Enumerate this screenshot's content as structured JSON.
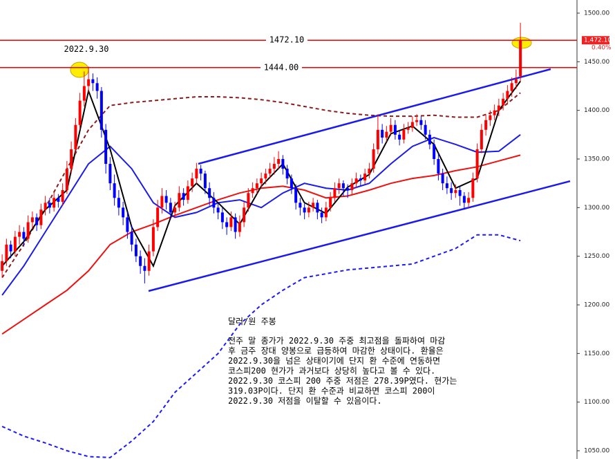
{
  "chart_data": {
    "type": "candlestick",
    "title": "달러/원 주봉",
    "notes": [
      "전주 말 종가가 2022.9.30 주중 최고점을 돌파하여 마감",
      "후 금주 장대 양봉으로 급등하여 마감한 상태이다. 환율은",
      "2022.9.30을 넘은 상태이기에 단지 환 수준에 연동하면",
      "코스피200 현가가 과거보다 상당히 높다고 볼 수 있다.",
      "2022.9.30 코스피 200 주중 저점은 278.39P였다. 현가는",
      "319.03P이다. 단지 환 수준과 비교하면 코스피 200이",
      "2022.9.30 저점을 이탈할 수 있음이다."
    ],
    "annotation": "2022.9.30",
    "xlim": [
      -0.5,
      132.3
    ],
    "ylim": [
      1041.5,
      1513.5
    ],
    "yticks": [
      {
        "value": 1050,
        "label": "1050.00"
      },
      {
        "value": 1100,
        "label": "1100.00"
      },
      {
        "value": 1150,
        "label": "1150.00"
      },
      {
        "value": 1200,
        "label": "1200.00"
      },
      {
        "value": 1250,
        "label": "1250.00"
      },
      {
        "value": 1300,
        "label": "1300.00"
      },
      {
        "value": 1350,
        "label": "1350.00"
      },
      {
        "value": 1400,
        "label": "1400.00"
      },
      {
        "value": 1450,
        "label": "1450.00"
      },
      {
        "value": 1500,
        "label": "1500.00"
      }
    ],
    "up_color": "#ff0000",
    "down_color": "#0000ff",
    "ohlc": [
      [
        1235,
        1252,
        1228,
        1245
      ],
      [
        1245,
        1268,
        1240,
        1262
      ],
      [
        1262,
        1266,
        1248,
        1255
      ],
      [
        1255,
        1276,
        1250,
        1270
      ],
      [
        1270,
        1282,
        1262,
        1275
      ],
      [
        1275,
        1280,
        1260,
        1268
      ],
      [
        1268,
        1292,
        1264,
        1285
      ],
      [
        1285,
        1296,
        1278,
        1290
      ],
      [
        1290,
        1294,
        1276,
        1282
      ],
      [
        1282,
        1304,
        1278,
        1298
      ],
      [
        1298,
        1312,
        1292,
        1305
      ],
      [
        1305,
        1310,
        1294,
        1300
      ],
      [
        1300,
        1316,
        1296,
        1310
      ],
      [
        1310,
        1314,
        1300,
        1306
      ],
      [
        1306,
        1325,
        1302,
        1318
      ],
      [
        1318,
        1348,
        1314,
        1340
      ],
      [
        1340,
        1368,
        1335,
        1360
      ],
      [
        1360,
        1392,
        1355,
        1385
      ],
      [
        1385,
        1418,
        1380,
        1410
      ],
      [
        1410,
        1440,
        1404,
        1425
      ],
      [
        1425,
        1445,
        1418,
        1432
      ],
      [
        1432,
        1438,
        1420,
        1428
      ],
      [
        1428,
        1434,
        1412,
        1420
      ],
      [
        1420,
        1424,
        1372,
        1380
      ],
      [
        1380,
        1386,
        1335,
        1345
      ],
      [
        1345,
        1352,
        1318,
        1325
      ],
      [
        1325,
        1334,
        1302,
        1310
      ],
      [
        1310,
        1318,
        1292,
        1300
      ],
      [
        1300,
        1306,
        1282,
        1290
      ],
      [
        1290,
        1296,
        1268,
        1275
      ],
      [
        1275,
        1282,
        1255,
        1262
      ],
      [
        1262,
        1268,
        1244,
        1250
      ],
      [
        1250,
        1256,
        1232,
        1240
      ],
      [
        1240,
        1248,
        1222,
        1235
      ],
      [
        1235,
        1262,
        1230,
        1255
      ],
      [
        1255,
        1288,
        1250,
        1280
      ],
      [
        1280,
        1308,
        1276,
        1300
      ],
      [
        1300,
        1320,
        1294,
        1312
      ],
      [
        1312,
        1318,
        1298,
        1305
      ],
      [
        1305,
        1310,
        1288,
        1295
      ],
      [
        1295,
        1306,
        1290,
        1300
      ],
      [
        1300,
        1322,
        1296,
        1315
      ],
      [
        1315,
        1320,
        1302,
        1308
      ],
      [
        1308,
        1328,
        1304,
        1322
      ],
      [
        1322,
        1336,
        1316,
        1330
      ],
      [
        1330,
        1346,
        1324,
        1340
      ],
      [
        1340,
        1344,
        1328,
        1335
      ],
      [
        1335,
        1338,
        1314,
        1320
      ],
      [
        1320,
        1326,
        1302,
        1310
      ],
      [
        1310,
        1316,
        1294,
        1300
      ],
      [
        1300,
        1305,
        1288,
        1295
      ],
      [
        1295,
        1300,
        1278,
        1285
      ],
      [
        1285,
        1290,
        1272,
        1280
      ],
      [
        1280,
        1296,
        1276,
        1290
      ],
      [
        1290,
        1294,
        1268,
        1275
      ],
      [
        1275,
        1292,
        1270,
        1285
      ],
      [
        1285,
        1306,
        1280,
        1300
      ],
      [
        1300,
        1320,
        1296,
        1315
      ],
      [
        1315,
        1326,
        1310,
        1320
      ],
      [
        1320,
        1330,
        1314,
        1325
      ],
      [
        1325,
        1336,
        1320,
        1330
      ],
      [
        1330,
        1340,
        1324,
        1335
      ],
      [
        1335,
        1346,
        1330,
        1340
      ],
      [
        1340,
        1352,
        1334,
        1345
      ],
      [
        1345,
        1358,
        1340,
        1350
      ],
      [
        1350,
        1354,
        1334,
        1340
      ],
      [
        1340,
        1344,
        1324,
        1330
      ],
      [
        1330,
        1334,
        1314,
        1320
      ],
      [
        1320,
        1324,
        1298,
        1305
      ],
      [
        1305,
        1310,
        1292,
        1300
      ],
      [
        1300,
        1304,
        1288,
        1295
      ],
      [
        1295,
        1306,
        1290,
        1300
      ],
      [
        1300,
        1310,
        1296,
        1305
      ],
      [
        1305,
        1308,
        1288,
        1295
      ],
      [
        1295,
        1300,
        1284,
        1290
      ],
      [
        1290,
        1306,
        1286,
        1300
      ],
      [
        1300,
        1316,
        1296,
        1310
      ],
      [
        1310,
        1326,
        1306,
        1320
      ],
      [
        1320,
        1330,
        1314,
        1325
      ],
      [
        1325,
        1328,
        1312,
        1320
      ],
      [
        1320,
        1324,
        1310,
        1318
      ],
      [
        1318,
        1330,
        1314,
        1325
      ],
      [
        1325,
        1336,
        1320,
        1330
      ],
      [
        1330,
        1334,
        1322,
        1328
      ],
      [
        1328,
        1340,
        1324,
        1335
      ],
      [
        1335,
        1346,
        1330,
        1340
      ],
      [
        1340,
        1366,
        1336,
        1360
      ],
      [
        1360,
        1396,
        1355,
        1380
      ],
      [
        1380,
        1386,
        1366,
        1372
      ],
      [
        1372,
        1384,
        1368,
        1378
      ],
      [
        1378,
        1392,
        1374,
        1385
      ],
      [
        1385,
        1390,
        1370,
        1375
      ],
      [
        1375,
        1380,
        1364,
        1370
      ],
      [
        1370,
        1386,
        1366,
        1380
      ],
      [
        1380,
        1388,
        1376,
        1382
      ],
      [
        1382,
        1394,
        1378,
        1388
      ],
      [
        1388,
        1396,
        1384,
        1390
      ],
      [
        1390,
        1394,
        1380,
        1385
      ],
      [
        1385,
        1390,
        1370,
        1375
      ],
      [
        1375,
        1380,
        1360,
        1365
      ],
      [
        1365,
        1370,
        1344,
        1350
      ],
      [
        1350,
        1356,
        1328,
        1335
      ],
      [
        1335,
        1340,
        1318,
        1325
      ],
      [
        1325,
        1332,
        1314,
        1320
      ],
      [
        1320,
        1326,
        1308,
        1315
      ],
      [
        1315,
        1324,
        1310,
        1318
      ],
      [
        1318,
        1322,
        1302,
        1312
      ],
      [
        1312,
        1316,
        1298,
        1305
      ],
      [
        1305,
        1316,
        1300,
        1310
      ],
      [
        1310,
        1336,
        1306,
        1330
      ],
      [
        1330,
        1366,
        1326,
        1360
      ],
      [
        1360,
        1386,
        1356,
        1380
      ],
      [
        1380,
        1396,
        1374,
        1390
      ],
      [
        1390,
        1400,
        1384,
        1395
      ],
      [
        1395,
        1406,
        1390,
        1400
      ],
      [
        1400,
        1412,
        1394,
        1405
      ],
      [
        1405,
        1418,
        1400,
        1412
      ],
      [
        1412,
        1426,
        1406,
        1420
      ],
      [
        1420,
        1434,
        1414,
        1428
      ],
      [
        1428,
        1442,
        1422,
        1432
      ],
      [
        1435,
        1490,
        1430,
        1472.1
      ]
    ],
    "lines": [
      {
        "color": "#1a1aff",
        "dash": true,
        "x": [
          0,
          5,
          10,
          15,
          20,
          25,
          30,
          35,
          40,
          45,
          50,
          55,
          60,
          65,
          70,
          75,
          80,
          85,
          90,
          95,
          100,
          105,
          110,
          115,
          120
        ],
        "values": [
          1075,
          1065,
          1058,
          1050,
          1044,
          1043,
          1060,
          1080,
          1110,
          1130,
          1150,
          1180,
          1200,
          1215,
          1228,
          1232,
          1236,
          1238,
          1240,
          1242,
          1250,
          1258,
          1272,
          1272,
          1266
        ]
      },
      {
        "color": "#8b1a1a",
        "dash": true,
        "x": [
          0,
          5,
          10,
          15,
          20,
          25,
          30,
          35,
          40,
          45,
          50,
          55,
          60,
          65,
          70,
          75,
          80,
          85,
          90,
          95,
          100,
          105,
          110,
          115,
          120
        ],
        "values": [
          1228,
          1262,
          1300,
          1340,
          1380,
          1405,
          1408,
          1410,
          1412,
          1414,
          1414,
          1413,
          1411,
          1408,
          1404,
          1400,
          1397,
          1395,
          1394,
          1394,
          1395,
          1393,
          1393,
          1400,
          1418
        ]
      },
      {
        "color": "#ee1111",
        "dash": false,
        "x": [
          0,
          5,
          10,
          15,
          20,
          25,
          30,
          35,
          40,
          45,
          50,
          55,
          60,
          65,
          70,
          75,
          80,
          85,
          90,
          95,
          100,
          105,
          110,
          115,
          120
        ],
        "values": [
          1170,
          1185,
          1200,
          1215,
          1235,
          1262,
          1275,
          1283,
          1292,
          1300,
          1308,
          1315,
          1320,
          1322,
          1318,
          1310,
          1312,
          1318,
          1325,
          1330,
          1333,
          1338,
          1342,
          1348,
          1354
        ]
      },
      {
        "color": "#1a1aee",
        "dash": false,
        "x": [
          0,
          5,
          10,
          15,
          20,
          25,
          30,
          35,
          40,
          45,
          50,
          55,
          60,
          65,
          70,
          75,
          80,
          85,
          90,
          95,
          100,
          105,
          110,
          115,
          120
        ],
        "values": [
          1210,
          1240,
          1275,
          1310,
          1345,
          1363,
          1340,
          1305,
          1290,
          1295,
          1305,
          1308,
          1300,
          1315,
          1325,
          1320,
          1318,
          1325,
          1345,
          1363,
          1372,
          1365,
          1357,
          1358,
          1375
        ]
      },
      {
        "color": "#000000",
        "dash": false,
        "x": [
          0,
          5,
          10,
          15,
          20,
          25,
          30,
          35,
          40,
          45,
          50,
          55,
          60,
          65,
          70,
          75,
          80,
          85,
          90,
          95,
          100,
          105,
          110,
          115,
          120
        ],
        "values": [
          1240,
          1265,
          1298,
          1318,
          1420,
          1360,
          1280,
          1240,
          1302,
          1325,
          1305,
          1283,
          1322,
          1345,
          1305,
          1294,
          1321,
          1334,
          1376,
          1384,
          1365,
          1320,
          1330,
          1400,
          1430
        ]
      }
    ],
    "trendlines": [
      {
        "color": "#1a1aee",
        "x": [
          45.4,
          127
        ],
        "values": [
          1345,
          1442.4
        ]
      },
      {
        "color": "#1a1aee",
        "x": [
          33.9,
          131.5
        ],
        "values": [
          1214.2,
          1327.2
        ]
      }
    ],
    "levels": [
      {
        "value": 1472.1,
        "label": "1472.10",
        "color": "#ee0000"
      },
      {
        "value": 1444,
        "label": "1444.00",
        "color": "#ee0000"
      }
    ],
    "last_price": {
      "value": 1472.1,
      "label": "1,472.10"
    },
    "change": {
      "value": 0.4,
      "label": "0.40%"
    }
  }
}
